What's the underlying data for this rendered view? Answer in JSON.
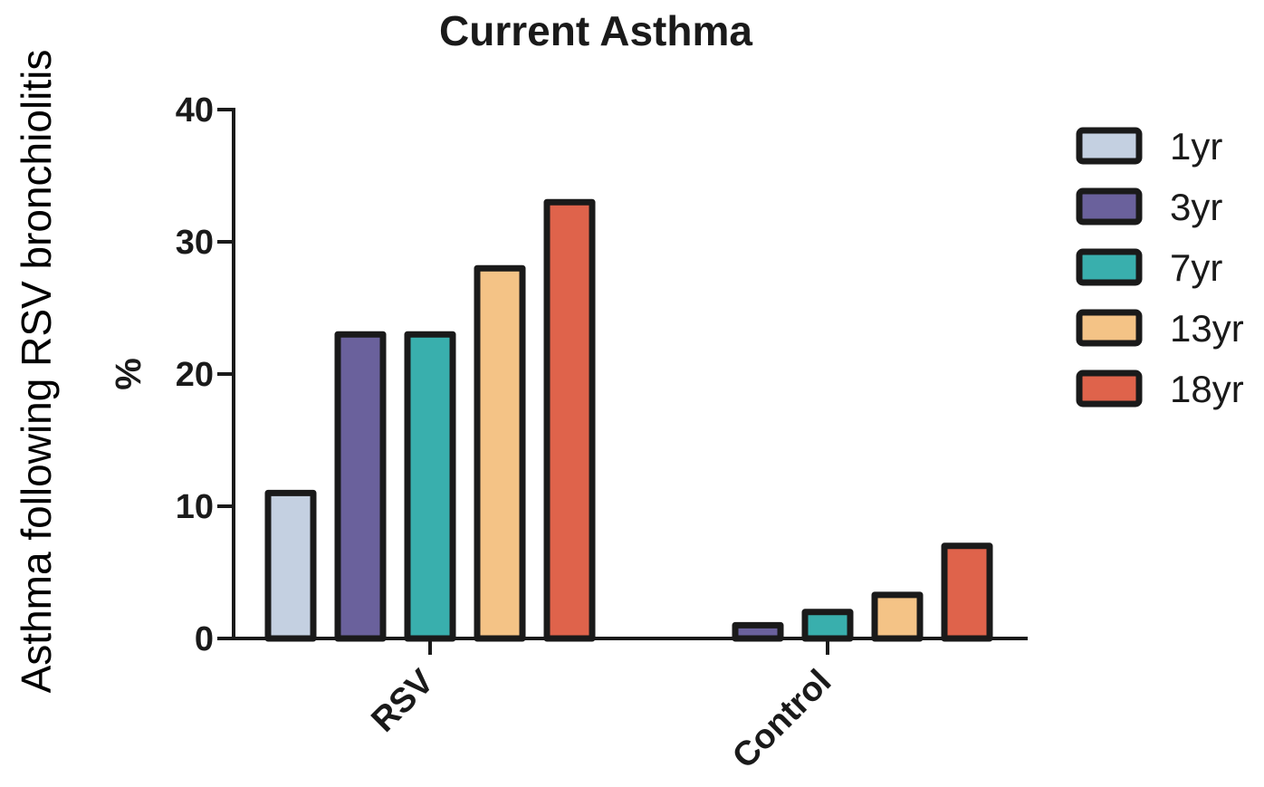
{
  "side_label": "Asthma following RSV bronchiolitis",
  "chart_data": {
    "type": "bar",
    "title": "Current Asthma",
    "xlabel": "",
    "ylabel": "%",
    "ylim": [
      0,
      40
    ],
    "yticks": [
      0,
      10,
      20,
      30,
      40
    ],
    "categories": [
      "RSV",
      "Control"
    ],
    "series": [
      {
        "name": "1yr",
        "color": "#c4d0e1",
        "values": [
          11,
          null
        ]
      },
      {
        "name": "3yr",
        "color": "#6a619c",
        "values": [
          23,
          1
        ]
      },
      {
        "name": "7yr",
        "color": "#39afad",
        "values": [
          23,
          2
        ]
      },
      {
        "name": "13yr",
        "color": "#f4c386",
        "values": [
          28,
          3.3
        ]
      },
      {
        "name": "18yr",
        "color": "#df634b",
        "values": [
          33,
          7
        ]
      }
    ],
    "legend_position": "right",
    "grid": false
  }
}
